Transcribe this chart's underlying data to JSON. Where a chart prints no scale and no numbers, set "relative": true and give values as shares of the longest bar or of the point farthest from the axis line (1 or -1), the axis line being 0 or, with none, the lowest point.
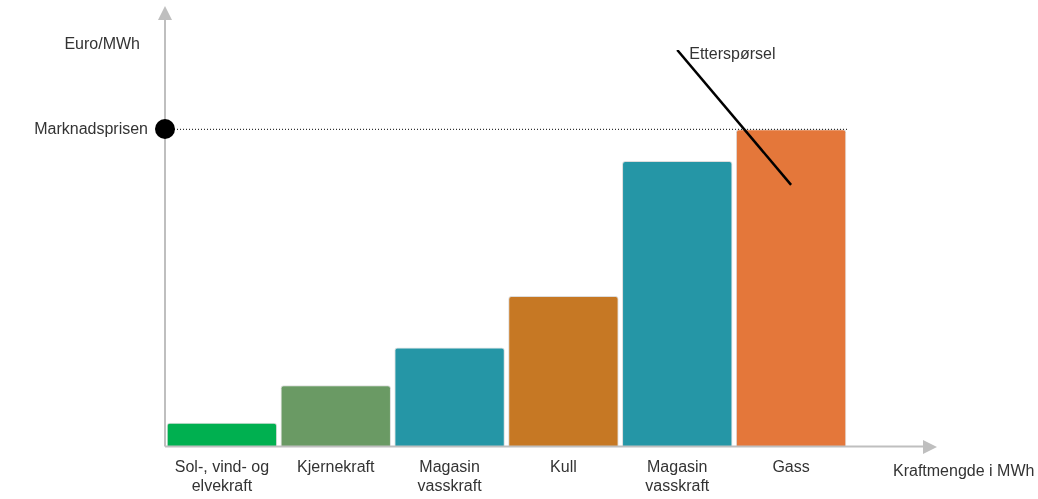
{
  "chart_data": {
    "type": "bar",
    "relative": true,
    "xlabel": "Kraftmengde i MWh",
    "ylabel": "Euro/MWh",
    "categories": [
      "Sol-, vind- og elvekraft",
      "Kjernekraft",
      "Magasin vasskraft",
      "Kull",
      "Magasin vasskraft",
      "Gass"
    ],
    "series": [
      {
        "colors": [
          "#00b050",
          "#6a9a64",
          "#2596a6",
          "#c67824",
          "#2596a6",
          "#e4773a"
        ],
        "values": [
          0.06,
          0.155,
          0.25,
          0.38,
          0.72,
          0.8
        ]
      },
      {
        "type": "line",
        "name": "Etterspørsel",
        "color": "#000000",
        "values": [
          null,
          null,
          null,
          null,
          1.0,
          0.66
        ]
      }
    ],
    "ref_lines": [
      {
        "axis": "y",
        "value": 0.8,
        "label": "Marknadsprisen",
        "line_style": "dotted",
        "color": "#000000"
      }
    ]
  }
}
